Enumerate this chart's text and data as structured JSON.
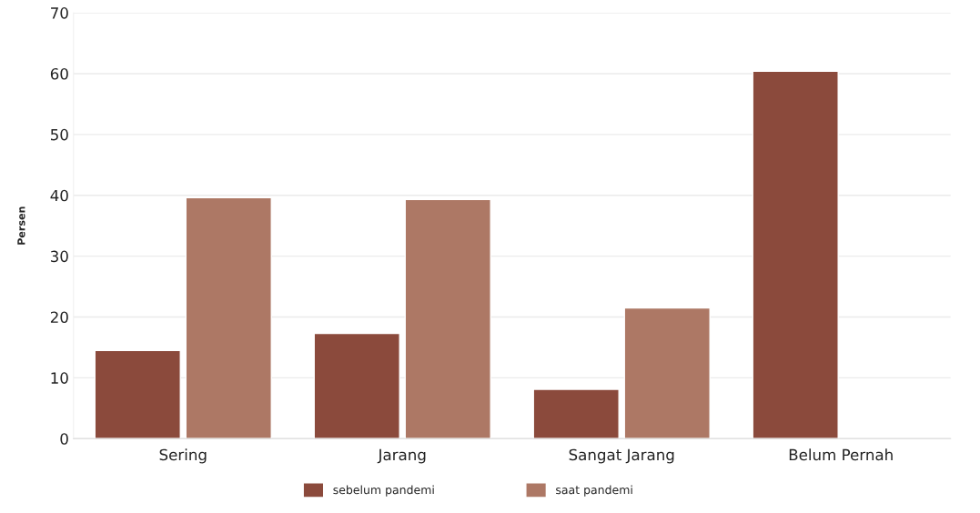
{
  "chart_data": {
    "type": "bar",
    "ylabel": "Persen",
    "categories": [
      "Sering",
      "Jarang",
      "Sangat Jarang",
      "Belum Pernah"
    ],
    "series": [
      {
        "name": "sebelum pandemi",
        "color": "#8b4a3c",
        "values": [
          14.5,
          17.3,
          8.1,
          60.4
        ]
      },
      {
        "name": "saat pandemi",
        "color": "#ad7865",
        "values": [
          39.6,
          39.3,
          21.5,
          null
        ]
      }
    ],
    "ylim": [
      0,
      70
    ],
    "yticks": [
      0,
      10,
      20,
      30,
      40,
      50,
      60,
      70
    ],
    "grid": "y",
    "legend": "bottom"
  }
}
